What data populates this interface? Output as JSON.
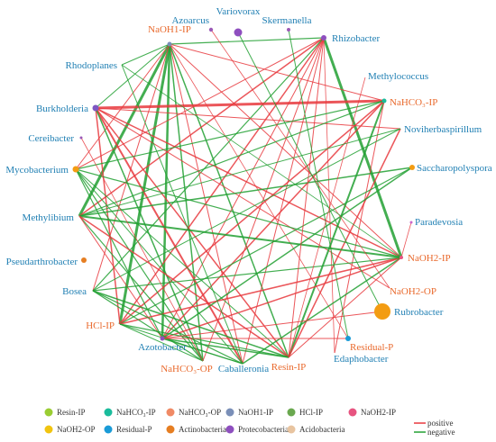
{
  "colors": {
    "taxon_label": "#1f7fb3",
    "p_label": "#e9692c",
    "positive": "#e8383d",
    "negative": "#22a033"
  },
  "nodes": [
    {
      "id": "azoarcus",
      "label": "Azoarcus",
      "kind": "taxon",
      "color": "#9b59b6"
    },
    {
      "id": "variovorax",
      "label": "Variovorax",
      "kind": "taxon",
      "color": "#8e4fbf"
    },
    {
      "id": "skermanella",
      "label": "Skermanella",
      "kind": "taxon",
      "color": "#9b59b6"
    },
    {
      "id": "naoh1ip",
      "label": "NaOH1-IP",
      "kind": "p",
      "color": "#7a8fb8"
    },
    {
      "id": "rhizobacter",
      "label": "Rhizobacter",
      "kind": "taxon",
      "color": "#8e4fbf"
    },
    {
      "id": "rhodoplanes",
      "label": "Rhodoplanes",
      "kind": "taxon",
      "color": "#9b59b6"
    },
    {
      "id": "methylococcus",
      "label": "Methylococcus",
      "kind": "taxon",
      "color": "#9b59b6"
    },
    {
      "id": "nahco3ip",
      "label": "NaHCO₃-IP",
      "kind": "p",
      "color": "#1abc9c"
    },
    {
      "id": "burkholderia",
      "label": "Burkholderia",
      "kind": "taxon",
      "color": "#7e57c2"
    },
    {
      "id": "noviherbaspirillum",
      "label": "Noviherbaspirillum",
      "kind": "taxon",
      "color": "#9b59b6"
    },
    {
      "id": "cereibacter",
      "label": "Cereibacter",
      "kind": "taxon",
      "color": "#9b59b6"
    },
    {
      "id": "mycobacterium",
      "label": "Mycobacterium",
      "kind": "taxon",
      "color": "#f39c12"
    },
    {
      "id": "saccharopolyspora",
      "label": "Saccharopolyspora",
      "kind": "taxon",
      "color": "#f39c12"
    },
    {
      "id": "methylibium",
      "label": "Methylibium",
      "kind": "taxon",
      "color": "#9b59b6"
    },
    {
      "id": "paradevosia",
      "label": "Paradevosia",
      "kind": "taxon",
      "color": "#cc66cc"
    },
    {
      "id": "pseudarthrobacter",
      "label": "Pseudarthrobacter",
      "kind": "taxon",
      "color": "#e67e22"
    },
    {
      "id": "naoh2ip",
      "label": "NaOH2-IP",
      "kind": "p",
      "color": "#e75480"
    },
    {
      "id": "naoh2op",
      "label": "NaOH2-OP",
      "kind": "p",
      "color": "#f1c40f"
    },
    {
      "id": "bosea",
      "label": "Bosea",
      "kind": "taxon",
      "color": "#9b59b6"
    },
    {
      "id": "rubrobacter",
      "label": "Rubrobacter",
      "kind": "taxon",
      "color": "#f39c12"
    },
    {
      "id": "hclip",
      "label": "HCl-IP",
      "kind": "p",
      "color": "#6aa84f"
    },
    {
      "id": "azotobacter",
      "label": "Azotobacter",
      "kind": "taxon",
      "color": "#8e4fbf"
    },
    {
      "id": "residualp",
      "label": "Residual-P",
      "kind": "p",
      "color": "#1a9bd7"
    },
    {
      "id": "edaphobacter",
      "label": "Edaphobacter",
      "kind": "taxon",
      "color": "#d2b48c"
    },
    {
      "id": "nahco3op",
      "label": "NaHCO₃-OP",
      "kind": "p",
      "color": "#f08a65"
    },
    {
      "id": "caballeronia",
      "label": "Caballeronia",
      "kind": "taxon",
      "color": "#9b59b6"
    },
    {
      "id": "resinip",
      "label": "Resin-IP",
      "kind": "p",
      "color": "#9acd32"
    }
  ],
  "edges": [
    [
      "naoh1ip",
      "rhizobacter",
      "negative",
      1.2
    ],
    [
      "naoh1ip",
      "methylibium",
      "negative",
      3
    ],
    [
      "naoh1ip",
      "hclip",
      "negative",
      3
    ],
    [
      "naoh1ip",
      "azotobacter",
      "negative",
      2.5
    ],
    [
      "naoh1ip",
      "caballeronia",
      "positive",
      1
    ],
    [
      "naoh1ip",
      "resinip",
      "negative",
      1.5
    ],
    [
      "naoh1ip",
      "nahco3op",
      "negative",
      1.5
    ],
    [
      "naoh1ip",
      "bosea",
      "positive",
      1
    ],
    [
      "naoh1ip",
      "mycobacterium",
      "positive",
      1
    ],
    [
      "naoh1ip",
      "burkholderia",
      "negative",
      1
    ],
    [
      "naoh1ip",
      "rhodoplanes",
      "negative",
      1
    ],
    [
      "naoh1ip",
      "naoh2ip",
      "positive",
      1
    ],
    [
      "naoh1ip",
      "residualp",
      "positive",
      0.8
    ],
    [
      "rhizobacter",
      "methylibium",
      "positive",
      1.5
    ],
    [
      "rhizobacter",
      "naoh2ip",
      "negative",
      3
    ],
    [
      "rhizobacter",
      "hclip",
      "positive",
      1.5
    ],
    [
      "rhizobacter",
      "bosea",
      "negative",
      1.2
    ],
    [
      "rhizobacter",
      "azotobacter",
      "positive",
      1
    ],
    [
      "rhizobacter",
      "edaphobacter",
      "positive",
      0.8
    ],
    [
      "rhizobacter",
      "nahco3op",
      "positive",
      1
    ],
    [
      "rhizobacter",
      "caballeronia",
      "positive",
      1
    ],
    [
      "rhizobacter",
      "naoh1ip",
      "positive",
      0
    ],
    [
      "burkholderia",
      "nahco3ip",
      "positive",
      3
    ],
    [
      "burkholderia",
      "naoh2ip",
      "positive",
      1.5
    ],
    [
      "burkholderia",
      "noviherbaspirillum",
      "positive",
      1
    ],
    [
      "burkholderia",
      "hclip",
      "positive",
      1.5
    ],
    [
      "burkholderia",
      "caballeronia",
      "positive",
      2
    ],
    [
      "burkholderia",
      "naoh2op",
      "positive",
      1
    ],
    [
      "burkholderia",
      "resinip",
      "positive",
      1.5
    ],
    [
      "burkholderia",
      "nahco3op",
      "negative",
      1.5
    ],
    [
      "nahco3ip",
      "mycobacterium",
      "negative",
      1.2
    ],
    [
      "nahco3ip",
      "methylibium",
      "negative",
      1.2
    ],
    [
      "nahco3ip",
      "resinip",
      "negative",
      2
    ],
    [
      "nahco3ip",
      "azotobacter",
      "positive",
      1.5
    ],
    [
      "nahco3ip",
      "hclip",
      "positive",
      1.5
    ],
    [
      "nahco3ip",
      "edaphobacter",
      "positive",
      1
    ],
    [
      "nahco3ip",
      "naoh1ip",
      "positive",
      1
    ],
    [
      "noviherbaspirillum",
      "resinip",
      "positive",
      1.5
    ],
    [
      "noviherbaspirillum",
      "bosea",
      "negative",
      1
    ],
    [
      "noviherbaspirillum",
      "methylibium",
      "negative",
      1
    ],
    [
      "mycobacterium",
      "naoh2ip",
      "negative",
      1.2
    ],
    [
      "mycobacterium",
      "resinip",
      "negative",
      1
    ],
    [
      "mycobacterium",
      "azotobacter",
      "negative",
      1.2
    ],
    [
      "mycobacterium",
      "nahco3op",
      "negative",
      1.2
    ],
    [
      "mycobacterium",
      "caballeronia",
      "negative",
      1
    ],
    [
      "mycobacterium",
      "rhizobacter",
      "positive",
      1
    ],
    [
      "methylibium",
      "saccharopolyspora",
      "negative",
      1.5
    ],
    [
      "methylibium",
      "naoh2ip",
      "negative",
      2
    ],
    [
      "methylibium",
      "nahco3op",
      "negative",
      1.2
    ],
    [
      "methylibium",
      "resinip",
      "positive",
      1.5
    ],
    [
      "methylibium",
      "azotobacter",
      "positive",
      1
    ],
    [
      "saccharopolyspora",
      "azotobacter",
      "negative",
      1.5
    ],
    [
      "saccharopolyspora",
      "hclip",
      "negative",
      1.2
    ],
    [
      "naoh2ip",
      "azotobacter",
      "positive",
      1.5
    ],
    [
      "naoh2ip",
      "hclip",
      "positive",
      1.5
    ],
    [
      "naoh2ip",
      "caballeronia",
      "negative",
      1.5
    ],
    [
      "naoh2ip",
      "bosea",
      "negative",
      1.2
    ],
    [
      "naoh2ip",
      "paradevosia",
      "positive",
      0.8
    ],
    [
      "naoh2ip",
      "resinip",
      "positive",
      1
    ],
    [
      "bosea",
      "resinip",
      "negative",
      1.5
    ],
    [
      "bosea",
      "nahco3op",
      "negative",
      1.2
    ],
    [
      "bosea",
      "caballeronia",
      "negative",
      1.2
    ],
    [
      "hclip",
      "nahco3op",
      "negative",
      1
    ],
    [
      "hclip",
      "resinip",
      "negative",
      1.2
    ],
    [
      "hclip",
      "caballeronia",
      "negative",
      1
    ],
    [
      "azotobacter",
      "rubrobacter",
      "positive",
      1
    ],
    [
      "azotobacter",
      "resinip",
      "negative",
      1.5
    ],
    [
      "azotobacter",
      "caballeronia",
      "negative",
      1.2
    ],
    [
      "azotobacter",
      "residualp",
      "positive",
      1
    ],
    [
      "caballeronia",
      "rhodoplanes",
      "negative",
      1
    ],
    [
      "resinip",
      "rhizobacter",
      "positive",
      1
    ],
    [
      "skermanella",
      "residualp",
      "negative",
      1
    ],
    [
      "azoarcus",
      "naoh2op",
      "positive",
      0.8
    ],
    [
      "variovorax",
      "rubrobacter",
      "negative",
      1
    ],
    [
      "cereibacter",
      "nahco3op",
      "positive",
      0.8
    ],
    [
      "rhodoplanes",
      "naoh2ip",
      "negative",
      0.8
    ],
    [
      "methylococcus",
      "resinip",
      "positive",
      0.8
    ]
  ],
  "legend": [
    {
      "label": "Resin-IP",
      "color": "#9acd32"
    },
    {
      "label": "NaHCO₃-IP",
      "color": "#1abc9c"
    },
    {
      "label": "NaHCO₃-OP",
      "color": "#f08a65"
    },
    {
      "label": "NaOH1-IP",
      "color": "#7a8fb8"
    },
    {
      "label": "HCl-IP",
      "color": "#6aa84f"
    },
    {
      "label": "NaOH2-IP",
      "color": "#e75480"
    },
    {
      "label": "NaOH2-OP",
      "color": "#f1c40f"
    },
    {
      "label": "Residual-P",
      "color": "#1a9bd7"
    },
    {
      "label": "Actinobacteria",
      "color": "#e67e22"
    },
    {
      "label": "Protecobacteria",
      "color": "#8e4fbf"
    },
    {
      "label": "Acidobacteria",
      "color": "#e8c4a0"
    }
  ],
  "edge_legend": {
    "positive": "positive",
    "negative": "negative"
  }
}
